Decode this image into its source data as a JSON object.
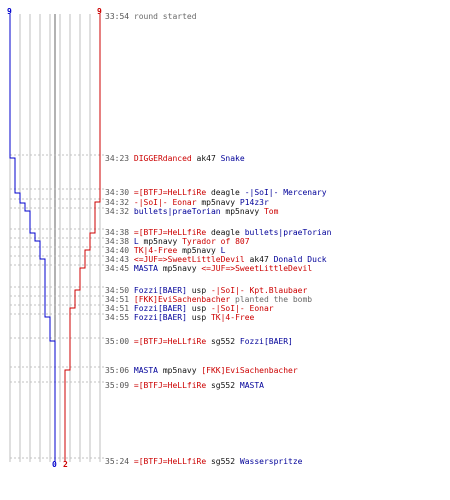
{
  "colors": {
    "blue_team": "#0000cc",
    "red_team": "#cc0000",
    "grid": "#bfbfbf",
    "text": "#111111"
  },
  "counters": {
    "blue_start": "9",
    "red_start": "9",
    "blue_end": "0",
    "red_end": "2"
  },
  "events": [
    {
      "time": "33:54",
      "parts": [
        {
          "t": "round started",
          "c": "ev-gray"
        }
      ]
    },
    {
      "time": "34:23",
      "parts": [
        {
          "t": "DIGGERdanced",
          "c": "red"
        },
        {
          "t": " ak47 ",
          "c": "blk"
        },
        {
          "t": "Snake",
          "c": "blue"
        }
      ]
    },
    {
      "time": "34:30",
      "parts": [
        {
          "t": "=[BTFJ=HeLLfiRe",
          "c": "red"
        },
        {
          "t": " deagle ",
          "c": "blk"
        },
        {
          "t": "-|SoI|- Mercenary",
          "c": "blue"
        }
      ]
    },
    {
      "time": "34:32",
      "parts": [
        {
          "t": "-|SoI|- Eonar",
          "c": "red"
        },
        {
          "t": " mp5navy ",
          "c": "blk"
        },
        {
          "t": "P14z3r",
          "c": "blue"
        }
      ]
    },
    {
      "time": "34:32",
      "parts": [
        {
          "t": "bullets|praeTorian",
          "c": "blue"
        },
        {
          "t": " mp5navy ",
          "c": "blk"
        },
        {
          "t": "Tom",
          "c": "red"
        }
      ]
    },
    {
      "time": "34:38",
      "parts": [
        {
          "t": "=[BTFJ=HeLLfiRe",
          "c": "red"
        },
        {
          "t": " deagle ",
          "c": "blk"
        },
        {
          "t": "bullets|praeTorian",
          "c": "blue"
        }
      ]
    },
    {
      "time": "34:38",
      "parts": [
        {
          "t": "L",
          "c": "blue"
        },
        {
          "t": " mp5navy ",
          "c": "blk"
        },
        {
          "t": "Tyrador of 807",
          "c": "red"
        }
      ]
    },
    {
      "time": "34:40",
      "parts": [
        {
          "t": "TK|4-Free",
          "c": "red"
        },
        {
          "t": " mp5navy ",
          "c": "blk"
        },
        {
          "t": "L",
          "c": "blue"
        }
      ]
    },
    {
      "time": "34:43",
      "parts": [
        {
          "t": "<=JUF=>SweetLittleDevil",
          "c": "red"
        },
        {
          "t": " ak47 ",
          "c": "blk"
        },
        {
          "t": "Donald Duck",
          "c": "blue"
        }
      ]
    },
    {
      "time": "34:45",
      "parts": [
        {
          "t": "MASTA",
          "c": "blue"
        },
        {
          "t": " mp5navy ",
          "c": "blk"
        },
        {
          "t": "<=JUF=>SweetLittleDevil",
          "c": "red"
        }
      ]
    },
    {
      "time": "34:50",
      "parts": [
        {
          "t": "Fozzi[BAER]",
          "c": "blue"
        },
        {
          "t": " usp ",
          "c": "blk"
        },
        {
          "t": "-|SoI|- Kpt.Blaubaer",
          "c": "red"
        }
      ]
    },
    {
      "time": "34:51",
      "parts": [
        {
          "t": "[FKK]EviSachenbacher",
          "c": "red"
        },
        {
          "t": " planted the bomb",
          "c": "ev-gray"
        }
      ]
    },
    {
      "time": "34:51",
      "parts": [
        {
          "t": "Fozzi[BAER]",
          "c": "blue"
        },
        {
          "t": " usp ",
          "c": "blk"
        },
        {
          "t": "-|SoI|- Eonar",
          "c": "red"
        }
      ]
    },
    {
      "time": "34:55",
      "parts": [
        {
          "t": "Fozzi[BAER]",
          "c": "blue"
        },
        {
          "t": " usp ",
          "c": "blk"
        },
        {
          "t": "TK|4-Free",
          "c": "red"
        }
      ]
    },
    {
      "time": "35:00",
      "parts": [
        {
          "t": "=[BTFJ=HeLLfiRe",
          "c": "red"
        },
        {
          "t": " sg552 ",
          "c": "blk"
        },
        {
          "t": "Fozzi[BAER]",
          "c": "blue"
        }
      ]
    },
    {
      "time": "35:06",
      "parts": [
        {
          "t": "MASTA",
          "c": "blue"
        },
        {
          "t": " mp5navy ",
          "c": "blk"
        },
        {
          "t": "[FKK]EviSachenbacher",
          "c": "red"
        }
      ]
    },
    {
      "time": "35:09",
      "parts": [
        {
          "t": "=[BTFJ=HeLLfiRe",
          "c": "red"
        },
        {
          "t": " sg552 ",
          "c": "blk"
        },
        {
          "t": "MASTA",
          "c": "blue"
        }
      ]
    },
    {
      "time": "35:24",
      "parts": [
        {
          "t": "=[BTFJ=HeLLfiRe",
          "c": "red"
        },
        {
          "t": " sg552 ",
          "c": "blk"
        },
        {
          "t": "Wasserspritze",
          "c": "blue"
        }
      ]
    }
  ],
  "chart_data": {
    "type": "line",
    "x_unit": "players alive",
    "xlim": [
      0,
      9
    ],
    "series": [
      {
        "color": "#0000cc",
        "steps": [
          9,
          8,
          7,
          6,
          5,
          4,
          3,
          2,
          1,
          0
        ]
      },
      {
        "color": "#cc0000",
        "steps": [
          9,
          8,
          7,
          6,
          5,
          4,
          3,
          2
        ]
      }
    ]
  }
}
